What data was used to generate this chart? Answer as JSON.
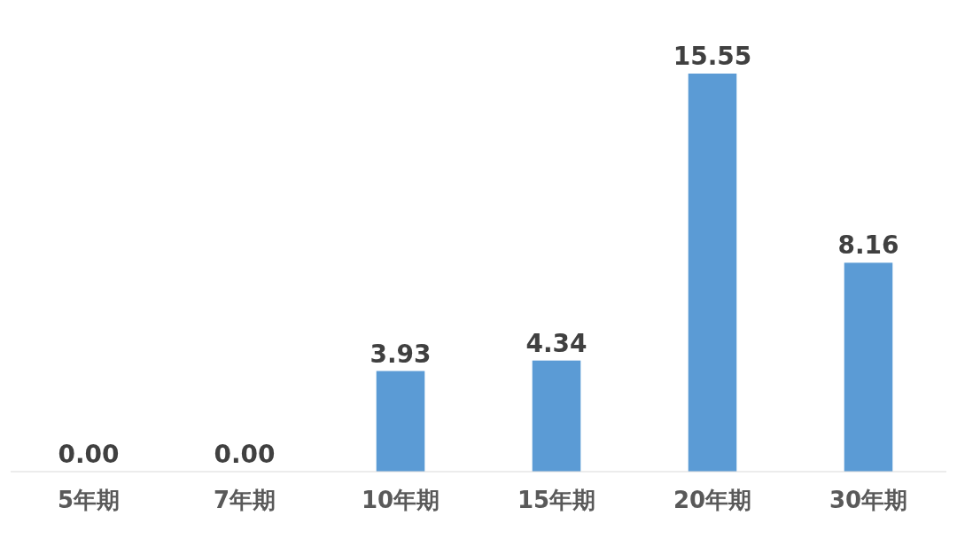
{
  "chart_data": {
    "type": "bar",
    "categories": [
      "5年期",
      "7年期",
      "10年期",
      "15年期",
      "20年期",
      "30年期"
    ],
    "values": [
      0.0,
      0.0,
      3.93,
      4.34,
      15.55,
      8.16
    ],
    "value_labels": [
      "0.00",
      "0.00",
      "3.93",
      "4.34",
      "15.55",
      "8.16"
    ],
    "color": "#5b9bd5"
  }
}
